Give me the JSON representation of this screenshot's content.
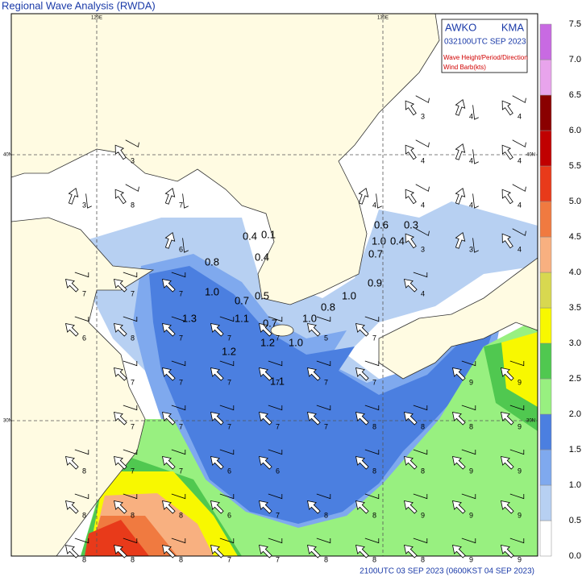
{
  "title": "Regional Wave Analysis (RWDA)",
  "legend_box": {
    "org_left": "AWKO",
    "org_right": "KMA",
    "time": "032100UTC SEP 2023",
    "line1": "Wave Height/Period/Direction",
    "line2": "Wind Barb(kts)"
  },
  "footer": "2100UTC 03 SEP 2023 (0600KST 04 SEP 2023)",
  "lon_labels": [
    "120E",
    "130E"
  ],
  "lat_labels": [
    "40N",
    "30N"
  ],
  "colorbar": {
    "levels": [
      {
        "value": 0,
        "label": "0.0"
      },
      0.5,
      {
        "value": 1,
        "label": "1.0"
      },
      1.5,
      {
        "value": 2,
        "label": "2.0"
      },
      2.5,
      {
        "value": 3,
        "label": "3.0"
      },
      3.5,
      {
        "value": 4,
        "label": "4.0"
      },
      4.5,
      {
        "value": 5,
        "label": "5.0"
      },
      5.5,
      {
        "value": 6,
        "label": "6.0"
      },
      6.5,
      {
        "value": 7,
        "label": "7.0"
      },
      7.5
    ],
    "colors": [
      "#ffffff",
      "#b7d0f2",
      "#7fa9ee",
      "#4b7fe0",
      "#98f080",
      "#50c850",
      "#f8f800",
      "#d8d850",
      "#f8b080",
      "#f07a40",
      "#e83a1a",
      "#c00000",
      "#8a0000",
      "#e8a4ec",
      "#c86ae2"
    ]
  },
  "height_labels": [
    "0.6",
    "0.3",
    "1.0",
    "0.4",
    "0.7",
    "0.4",
    "0.1",
    "0.8",
    "0.4",
    "1.0",
    "0.7",
    "0.5",
    "0.9",
    "1.0",
    "0.8",
    "1.3",
    "1.1",
    "0.7",
    "1.0",
    "1.2",
    "1.0",
    "1.2",
    "1.1"
  ],
  "period_grid": [
    [
      null,
      null,
      null,
      null,
      null,
      null,
      null,
      3,
      4,
      4
    ],
    [
      null,
      3,
      null,
      null,
      null,
      null,
      null,
      4,
      4,
      4
    ],
    [
      3,
      8,
      7,
      null,
      null,
      null,
      4,
      4,
      4,
      4
    ],
    [
      null,
      null,
      6,
      null,
      null,
      null,
      null,
      3,
      3,
      4
    ],
    [
      7,
      7,
      7,
      null,
      null,
      null,
      null,
      4,
      null,
      null
    ],
    [
      6,
      8,
      7,
      7,
      7,
      5,
      7,
      null,
      null,
      null
    ],
    [
      null,
      7,
      7,
      7,
      7,
      7,
      7,
      null,
      9,
      9
    ],
    [
      null,
      7,
      7,
      7,
      7,
      7,
      8,
      8,
      8,
      9
    ],
    [
      8,
      7,
      7,
      6,
      6,
      null,
      8,
      8,
      9,
      9
    ],
    [
      8,
      8,
      8,
      6,
      7,
      8,
      8,
      9,
      9,
      9
    ],
    [
      8,
      8,
      8,
      7,
      7,
      8,
      8,
      8,
      9,
      9
    ]
  ]
}
